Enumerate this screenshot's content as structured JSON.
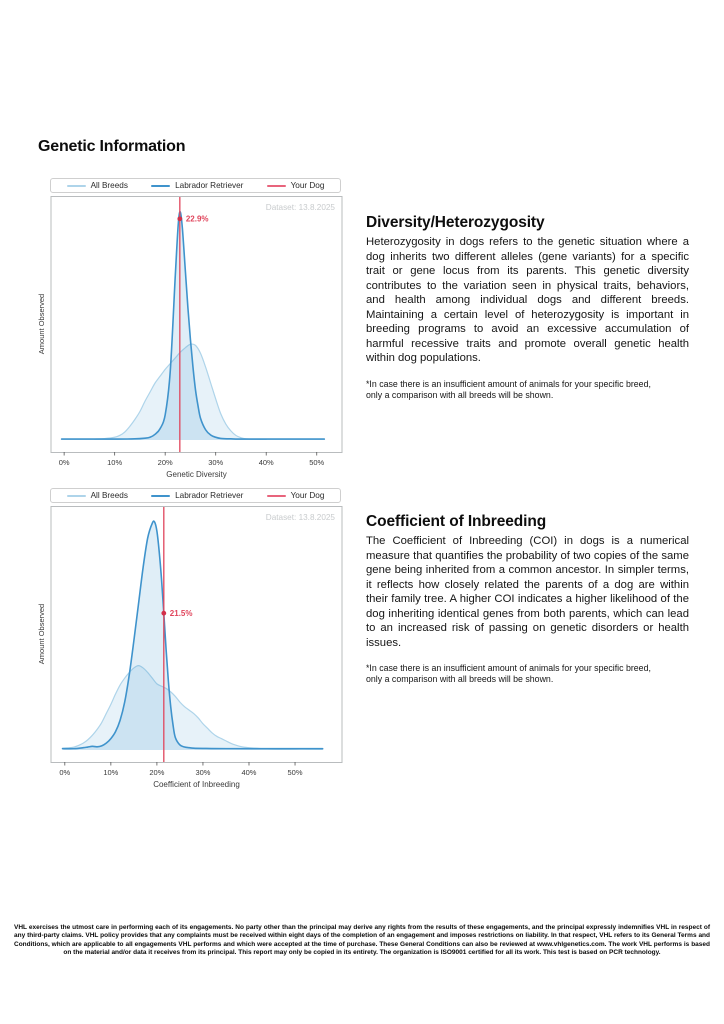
{
  "page": {
    "title": "Genetic Information"
  },
  "legend": {
    "items": [
      {
        "id": "all-breeds",
        "label": "All Breeds",
        "color": "#aed4ea"
      },
      {
        "id": "labrador-retriever",
        "label": "Labrador Retriever",
        "color": "#3f93cc"
      },
      {
        "id": "your-dog",
        "label": "Your Dog",
        "color": "#e8647c"
      }
    ]
  },
  "sections": [
    {
      "heading": "Diversity/Heterozygosity",
      "body": "Heterozygosity in dogs refers to the genetic situation where a dog inherits two different alleles (gene variants) for a specific trait or gene locus from its parents. This genetic diversity contributes to the variation seen in physical traits, behaviors, and health among individual dogs and different breeds. Maintaining a certain level of heterozygosity is important in breeding programs to avoid an excessive accumulation of harmful recessive traits and promote overall genetic health within dog populations.",
      "footnote": "*In case there is an insufficient amount of animals for your specific breed,\nonly a comparison with all breeds will be shown."
    },
    {
      "heading": "Coefficient of Inbreeding",
      "body": "The Coefficient of Inbreeding (COI) in dogs is a numerical measure that quantifies the probability of two copies of the same gene being inherited from a common ancestor. In simpler terms, it reflects how closely related the parents of a dog are within their family tree. A higher COI indicates a higher likelihood of the dog inheriting identical genes from both parents, which can lead to an increased risk of passing on genetic disorders or health issues.",
      "footnote": "*In case there is an insufficient amount of animals for your specific breed,\nonly a comparison with all breeds will be shown."
    }
  ],
  "footer": {
    "text": "VHL exercises the utmost care in performing each of its engagements. No party other than the principal may derive any rights from the results of these engagements, and the principal expressly indemnifies VHL in respect of any third-party claims. VHL policy provides that any complaints must be received within eight days of the completion of an engagement and imposes restrictions on liability. In that respect, VHL refers to its General Terms and Conditions, which are applicable to all engagements VHL performs and which were accepted at the time of purchase. These General Conditions can also be reviewed at www.vhlgenetics.com. The work VHL performs is based on the material and/or data it receives from its principal. This report may only be copied in its entirety. The organization is ISO9001 certified for all its work. This test is based on PCR technology."
  },
  "chart_data": [
    {
      "type": "area",
      "title": "",
      "xlabel": "Genetic Diversity",
      "ylabel": "Amount Observed",
      "dataset_label": "Dataset: 13.8.2025",
      "xlim": [
        -2.6,
        55.0
      ],
      "ylim": [
        0,
        1.1
      ],
      "grid": false,
      "legend_position": "top",
      "xticks": [
        0,
        10,
        20,
        30,
        40,
        50
      ],
      "xtick_labels": [
        "0%",
        "10%",
        "20%",
        "30%",
        "40%",
        "50%"
      ],
      "marker": {
        "name": "Your Dog",
        "x": 22.9,
        "label": "22.9%",
        "dot_v": 0.97,
        "color": "#e0455c",
        "dot_color": "#d3304a"
      },
      "series": [
        {
          "id": "all-breeds",
          "name": "All Breeds",
          "color": "#aed4ea",
          "width": 1.2,
          "fill_opacity": 0.3,
          "points": [
            [
              6,
              0.004
            ],
            [
              8,
              0.006
            ],
            [
              10,
              0.012
            ],
            [
              11,
              0.02
            ],
            [
              12,
              0.035
            ],
            [
              13,
              0.06
            ],
            [
              14,
              0.09
            ],
            [
              15,
              0.125
            ],
            [
              16,
              0.17
            ],
            [
              17,
              0.21
            ],
            [
              18,
              0.25
            ],
            [
              19,
              0.28
            ],
            [
              20,
              0.31
            ],
            [
              21,
              0.335
            ],
            [
              22,
              0.36
            ],
            [
              23,
              0.385
            ],
            [
              24,
              0.405
            ],
            [
              25,
              0.42
            ],
            [
              26,
              0.415
            ],
            [
              27,
              0.38
            ],
            [
              28,
              0.32
            ],
            [
              29,
              0.25
            ],
            [
              30,
              0.18
            ],
            [
              31,
              0.115
            ],
            [
              32,
              0.07
            ],
            [
              33,
              0.04
            ],
            [
              34,
              0.02
            ],
            [
              35,
              0.01
            ],
            [
              36,
              0.005
            ],
            [
              38,
              0.003
            ],
            [
              40,
              0.003
            ]
          ]
        },
        {
          "id": "labrador-retriever",
          "name": "Labrador Retriever",
          "color": "#3f93cc",
          "width": 1.6,
          "fill_opacity": 0.16,
          "points": [
            [
              -0.5,
              0.004
            ],
            [
              10,
              0.004
            ],
            [
              14,
              0.005
            ],
            [
              16,
              0.008
            ],
            [
              17,
              0.012
            ],
            [
              18,
              0.025
            ],
            [
              19,
              0.05
            ],
            [
              20,
              0.11
            ],
            [
              21,
              0.3
            ],
            [
              22,
              0.72
            ],
            [
              22.6,
              0.95
            ],
            [
              23,
              1.0
            ],
            [
              23.4,
              0.93
            ],
            [
              24,
              0.74
            ],
            [
              24.5,
              0.58
            ],
            [
              25,
              0.44
            ],
            [
              25.5,
              0.32
            ],
            [
              26,
              0.22
            ],
            [
              26.5,
              0.15
            ],
            [
              27,
              0.095
            ],
            [
              28,
              0.045
            ],
            [
              29,
              0.022
            ],
            [
              30,
              0.012
            ],
            [
              31,
              0.007
            ],
            [
              33,
              0.005
            ],
            [
              36,
              0.004
            ],
            [
              51.5,
              0.004
            ]
          ]
        }
      ]
    },
    {
      "type": "area",
      "title": "",
      "xlabel": "Coefficient of Inbreeding",
      "ylabel": "Amount Observed",
      "dataset_label": "Dataset: 13.8.2025",
      "xlim": [
        -3.0,
        60.2
      ],
      "ylim": [
        0,
        1.1
      ],
      "grid": false,
      "legend_position": "top",
      "xticks": [
        0,
        10,
        20,
        30,
        40,
        50
      ],
      "xtick_labels": [
        "0%",
        "10%",
        "20%",
        "30%",
        "40%",
        "50%"
      ],
      "marker": {
        "name": "Your Dog",
        "x": 21.5,
        "label": "21.5%",
        "dot_v": 0.6,
        "color": "#e0455c",
        "dot_color": "#d3304a"
      },
      "series": [
        {
          "id": "all-breeds",
          "name": "All Breeds",
          "color": "#aed4ea",
          "width": 1.2,
          "fill_opacity": 0.3,
          "points": [
            [
              -0.5,
              0.008
            ],
            [
              1,
              0.01
            ],
            [
              2,
              0.013
            ],
            [
              3,
              0.02
            ],
            [
              4,
              0.03
            ],
            [
              5,
              0.045
            ],
            [
              6,
              0.065
            ],
            [
              7,
              0.09
            ],
            [
              8,
              0.12
            ],
            [
              9,
              0.16
            ],
            [
              10,
              0.2
            ],
            [
              11,
              0.245
            ],
            [
              12,
              0.285
            ],
            [
              13,
              0.315
            ],
            [
              14,
              0.34
            ],
            [
              15,
              0.36
            ],
            [
              16,
              0.37
            ],
            [
              17,
              0.36
            ],
            [
              18,
              0.34
            ],
            [
              19,
              0.315
            ],
            [
              20,
              0.29
            ],
            [
              21,
              0.28
            ],
            [
              22,
              0.27
            ],
            [
              23,
              0.255
            ],
            [
              24,
              0.235
            ],
            [
              25,
              0.21
            ],
            [
              26,
              0.19
            ],
            [
              27,
              0.175
            ],
            [
              28,
              0.16
            ],
            [
              29,
              0.14
            ],
            [
              30,
              0.115
            ],
            [
              31,
              0.095
            ],
            [
              32,
              0.075
            ],
            [
              33,
              0.06
            ],
            [
              34,
              0.05
            ],
            [
              35,
              0.04
            ],
            [
              36,
              0.03
            ],
            [
              37,
              0.022
            ],
            [
              38,
              0.016
            ],
            [
              39,
              0.012
            ],
            [
              40,
              0.01
            ],
            [
              42,
              0.007
            ],
            [
              44,
              0.005
            ],
            [
              47,
              0.004
            ],
            [
              50,
              0.004
            ],
            [
              53,
              0.004
            ],
            [
              56,
              0.003
            ]
          ]
        },
        {
          "id": "labrador-retriever",
          "name": "Labrador Retriever",
          "color": "#3f93cc",
          "width": 1.6,
          "fill_opacity": 0.16,
          "points": [
            [
              -0.5,
              0.006
            ],
            [
              2,
              0.006
            ],
            [
              4,
              0.01
            ],
            [
              5,
              0.013
            ],
            [
              6,
              0.016
            ],
            [
              7,
              0.014
            ],
            [
              8,
              0.018
            ],
            [
              9,
              0.03
            ],
            [
              10,
              0.05
            ],
            [
              11,
              0.08
            ],
            [
              12,
              0.13
            ],
            [
              13,
              0.21
            ],
            [
              14,
              0.33
            ],
            [
              15,
              0.48
            ],
            [
              16,
              0.64
            ],
            [
              17,
              0.8
            ],
            [
              18,
              0.93
            ],
            [
              19,
              0.995
            ],
            [
              19.5,
              1.0
            ],
            [
              20,
              0.96
            ],
            [
              20.5,
              0.87
            ],
            [
              21,
              0.75
            ],
            [
              21.5,
              0.6
            ],
            [
              22,
              0.44
            ],
            [
              22.5,
              0.3
            ],
            [
              23,
              0.19
            ],
            [
              23.5,
              0.11
            ],
            [
              24,
              0.055
            ],
            [
              25,
              0.022
            ],
            [
              26,
              0.013
            ],
            [
              27,
              0.01
            ],
            [
              28,
              0.008
            ],
            [
              30,
              0.007
            ],
            [
              35,
              0.006
            ],
            [
              56,
              0.006
            ]
          ]
        }
      ]
    }
  ]
}
